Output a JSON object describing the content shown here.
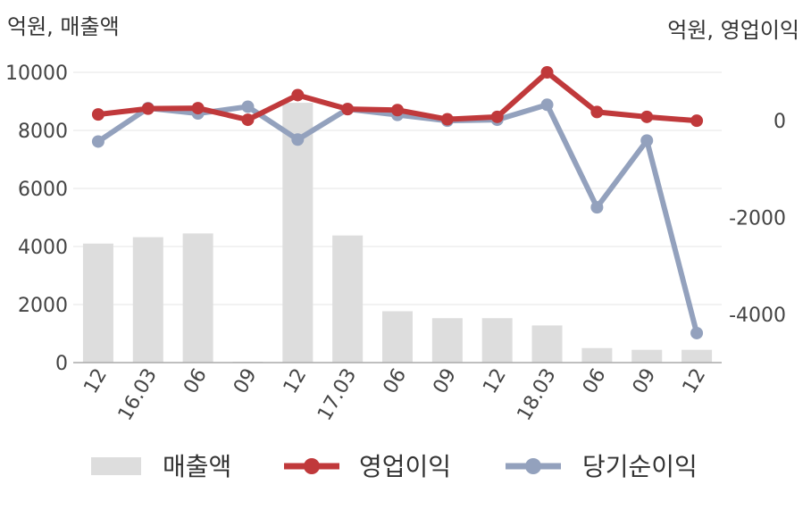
{
  "chart_data": {
    "type": "bar",
    "left_unit": "억원, 매출액",
    "right_unit": "억원, 영업이익",
    "categories": [
      "12",
      "16.03",
      "06",
      "09",
      "12",
      "17.03",
      "06",
      "09",
      "12",
      "18.03",
      "06",
      "09",
      "12"
    ],
    "left_axis": {
      "ylim": [
        0,
        10000
      ],
      "ticks": [
        "10000",
        "8000",
        "6000",
        "4000",
        "2000",
        "0"
      ],
      "tick_values": [
        10000,
        8000,
        6000,
        4000,
        2000,
        0
      ]
    },
    "right_axis": {
      "ylim": [
        -5000,
        1000
      ],
      "ticks": [
        "0",
        "-2000",
        "-4000"
      ],
      "tick_values": [
        0,
        -2000,
        -4000
      ]
    },
    "grid": true,
    "legend_position": "bottom",
    "series": [
      {
        "name": "매출액",
        "type": "bar",
        "axis": "left",
        "color": "#dddddd",
        "values": [
          4100,
          4320,
          4450,
          20,
          8950,
          4380,
          1770,
          1530,
          1530,
          1280,
          500,
          440,
          440
        ]
      },
      {
        "name": "영업이익",
        "type": "line",
        "axis": "right",
        "color": "#c0393b",
        "values": [
          130,
          250,
          260,
          20,
          530,
          240,
          220,
          30,
          80,
          1000,
          180,
          80,
          0
        ]
      },
      {
        "name": "당기순이익",
        "type": "line",
        "axis": "right",
        "color": "#93a1bd",
        "values": [
          -430,
          260,
          150,
          290,
          -390,
          240,
          120,
          0,
          20,
          330,
          -1790,
          -410,
          -4390
        ]
      }
    ]
  }
}
